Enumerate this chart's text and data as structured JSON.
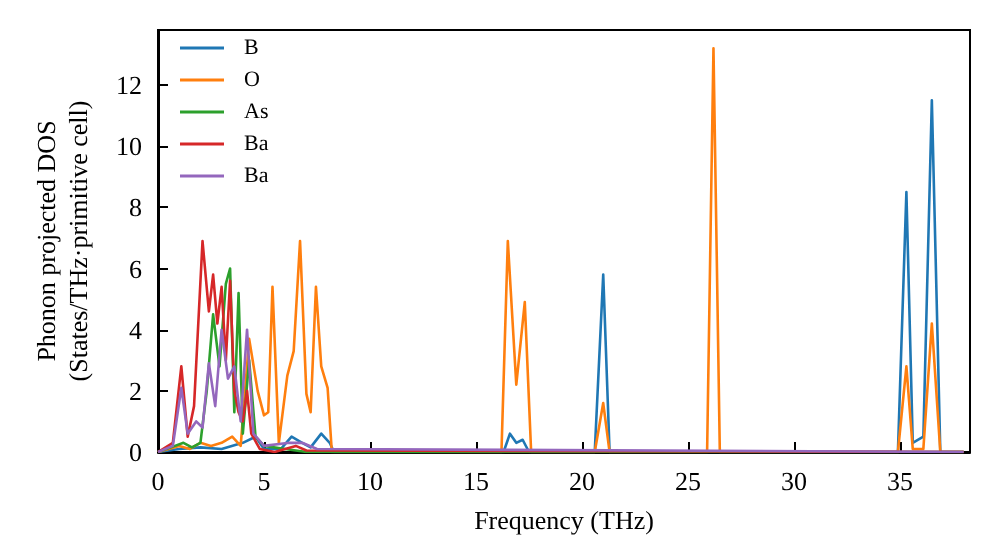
{
  "chart_data": {
    "type": "line",
    "xlabel": "Frequency (THz)",
    "ylabel": "Phonon projected DOS\n(States/THz·primitive cell)",
    "xlim": [
      0,
      38.3
    ],
    "ylim": [
      0,
      13.8
    ],
    "xticks": [
      0,
      5,
      10,
      15,
      20,
      25,
      30,
      35
    ],
    "yticks": [
      0,
      2,
      4,
      6,
      8,
      10,
      12
    ],
    "grid": false,
    "legend": "top left",
    "marker": "none",
    "line_style": "solid",
    "series": [
      {
        "name": "B",
        "color": "#1f77b4",
        "x": [
          0,
          1,
          2,
          3,
          4,
          4.6,
          5,
          5.8,
          6.3,
          6.8,
          7.2,
          7.7,
          8.1,
          8.3,
          16.3,
          16.6,
          16.9,
          17.2,
          17.5,
          20.6,
          21,
          21.3,
          34.9,
          35.3,
          35.6,
          36.1,
          36.5,
          36.9,
          38
        ],
        "values": [
          0,
          0.1,
          0.15,
          0.1,
          0.3,
          0.5,
          0.1,
          0.1,
          0.5,
          0.3,
          0.15,
          0.6,
          0.3,
          0,
          0,
          0.6,
          0.3,
          0.4,
          0,
          0,
          5.8,
          0,
          0,
          8.5,
          0.3,
          0.5,
          11.5,
          0,
          0
        ]
      },
      {
        "name": "O",
        "color": "#ff7f0e",
        "x": [
          0,
          1,
          1.5,
          2,
          2.5,
          3,
          3.5,
          3.9,
          4.3,
          4.7,
          5,
          5.2,
          5.4,
          5.7,
          6.1,
          6.4,
          6.7,
          7,
          7.2,
          7.45,
          7.7,
          8,
          8.2,
          16.2,
          16.5,
          16.9,
          17.3,
          17.6,
          20.6,
          21,
          21.3,
          25.9,
          26.2,
          26.5,
          34.9,
          35.3,
          35.6,
          36.1,
          36.5,
          36.9,
          38
        ],
        "values": [
          0,
          0.2,
          0.1,
          0.3,
          0.2,
          0.3,
          0.5,
          0.2,
          3.7,
          2,
          1.2,
          1.3,
          5.4,
          0.3,
          2.5,
          3.3,
          6.9,
          1.9,
          1.3,
          5.4,
          2.8,
          2.1,
          0,
          0,
          6.9,
          2.2,
          4.9,
          0,
          0,
          1.6,
          0,
          0,
          13.2,
          0,
          0,
          2.8,
          0.1,
          0.1,
          4.2,
          0,
          0
        ]
      },
      {
        "name": "As",
        "color": "#2ca02c",
        "x": [
          0,
          0.8,
          1.2,
          1.6,
          2,
          2.3,
          2.6,
          2.9,
          3.2,
          3.4,
          3.6,
          3.8,
          4,
          4.3,
          4.6,
          5,
          6,
          7,
          38
        ],
        "values": [
          0,
          0.2,
          0.3,
          0.15,
          0.3,
          2,
          4.5,
          2.8,
          5.5,
          6,
          1.3,
          5.2,
          0.6,
          3,
          0.5,
          0.2,
          0.1,
          0,
          0
        ]
      },
      {
        "name": "Ba",
        "color": "#d62728",
        "x": [
          0,
          0.7,
          1.1,
          1.4,
          1.7,
          2.1,
          2.4,
          2.6,
          2.8,
          3,
          3.2,
          3.4,
          3.6,
          3.8,
          4,
          4.2,
          4.4,
          4.8,
          5.5,
          6.5,
          7,
          38
        ],
        "values": [
          0,
          0.3,
          2.8,
          0.5,
          1.5,
          6.9,
          4.6,
          5.8,
          4.2,
          5.4,
          3,
          5.6,
          2,
          1.3,
          1,
          2,
          0.6,
          0.1,
          0,
          0.2,
          0.05,
          0
        ]
      },
      {
        "name": "Ba",
        "color": "#9467bd",
        "x": [
          0,
          0.7,
          1.1,
          1.4,
          1.8,
          2.1,
          2.4,
          2.7,
          3,
          3.3,
          3.6,
          3.9,
          4.2,
          4.5,
          5,
          6.2,
          6.8,
          7.5,
          38
        ],
        "values": [
          0,
          0.2,
          2.1,
          0.6,
          1,
          0.8,
          2.9,
          1.5,
          4,
          2.4,
          2.8,
          1,
          4,
          0.6,
          0.2,
          0.3,
          0.3,
          0.1,
          0
        ]
      }
    ]
  }
}
